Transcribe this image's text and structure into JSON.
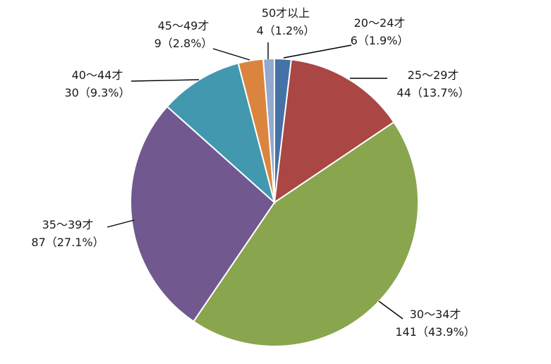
{
  "chart_data": {
    "type": "pie",
    "title": "",
    "start_angle_deg": 0,
    "direction": "clockwise",
    "colors": [
      "#4572A7",
      "#AA4643",
      "#89A54E",
      "#71588F",
      "#4198AF",
      "#DB843D",
      "#93A9CF"
    ],
    "slices": [
      {
        "label": "20～24才",
        "value": 6,
        "value_label": "6（1.9%）",
        "percent": 1.9
      },
      {
        "label": "25～29才",
        "value": 44,
        "value_label": "44（13.7%）",
        "percent": 13.7
      },
      {
        "label": "30～34才",
        "value": 141,
        "value_label": "141（43.9%）",
        "percent": 43.9
      },
      {
        "label": "35～39才",
        "value": 87,
        "value_label": "87（27.1%）",
        "percent": 27.1
      },
      {
        "label": "40～44才",
        "value": 30,
        "value_label": "30（9.3%）",
        "percent": 9.3
      },
      {
        "label": "45～49才",
        "value": 9,
        "value_label": "9（2.8%）",
        "percent": 2.8
      },
      {
        "label": "50才以上",
        "value": 4,
        "value_label": "4（1.2%）",
        "percent": 1.2
      }
    ]
  }
}
